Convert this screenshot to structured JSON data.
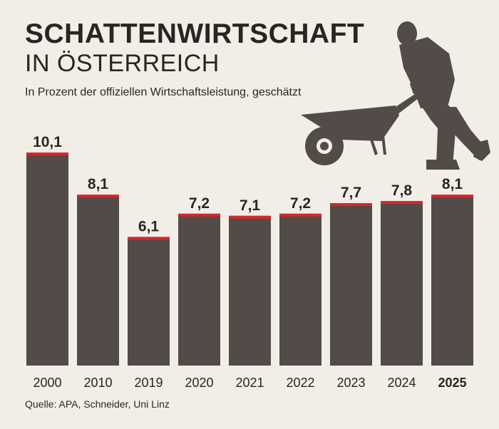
{
  "header": {
    "title": "SCHATTENWIRTSCHAFT",
    "subtitle": "IN ÖSTERREICH",
    "caption": "In Prozent der offiziellen Wirtschaftsleistung, geschätzt"
  },
  "footer": {
    "source": "Quelle:  APA, Schneider, Uni Linz"
  },
  "illustration": {
    "icon": "worker-with-wheelbarrow-icon"
  },
  "colors": {
    "bar": "#524b47",
    "accent": "#d8262c",
    "background": "#f1eee8",
    "text": "#2a2523"
  },
  "chart_data": {
    "type": "bar",
    "title": "SCHATTENWIRTSCHAFT IN ÖSTERREICH",
    "subtitle": "In Prozent der offiziellen Wirtschaftsleistung, geschätzt",
    "categories": [
      "2000",
      "2010",
      "2019",
      "2020",
      "2021",
      "2022",
      "2023",
      "2024",
      "2025"
    ],
    "values": [
      10.1,
      8.1,
      6.1,
      7.2,
      7.1,
      7.2,
      7.7,
      7.8,
      8.1
    ],
    "value_labels": [
      "10,1",
      "8,1",
      "6,1",
      "7,2",
      "7,1",
      "7,2",
      "7,7",
      "7,8",
      "8,1"
    ],
    "highlight_category": "2025",
    "xlabel": "",
    "ylabel": "",
    "ylim": [
      0,
      10.1
    ],
    "grid": false,
    "legend": "none"
  }
}
